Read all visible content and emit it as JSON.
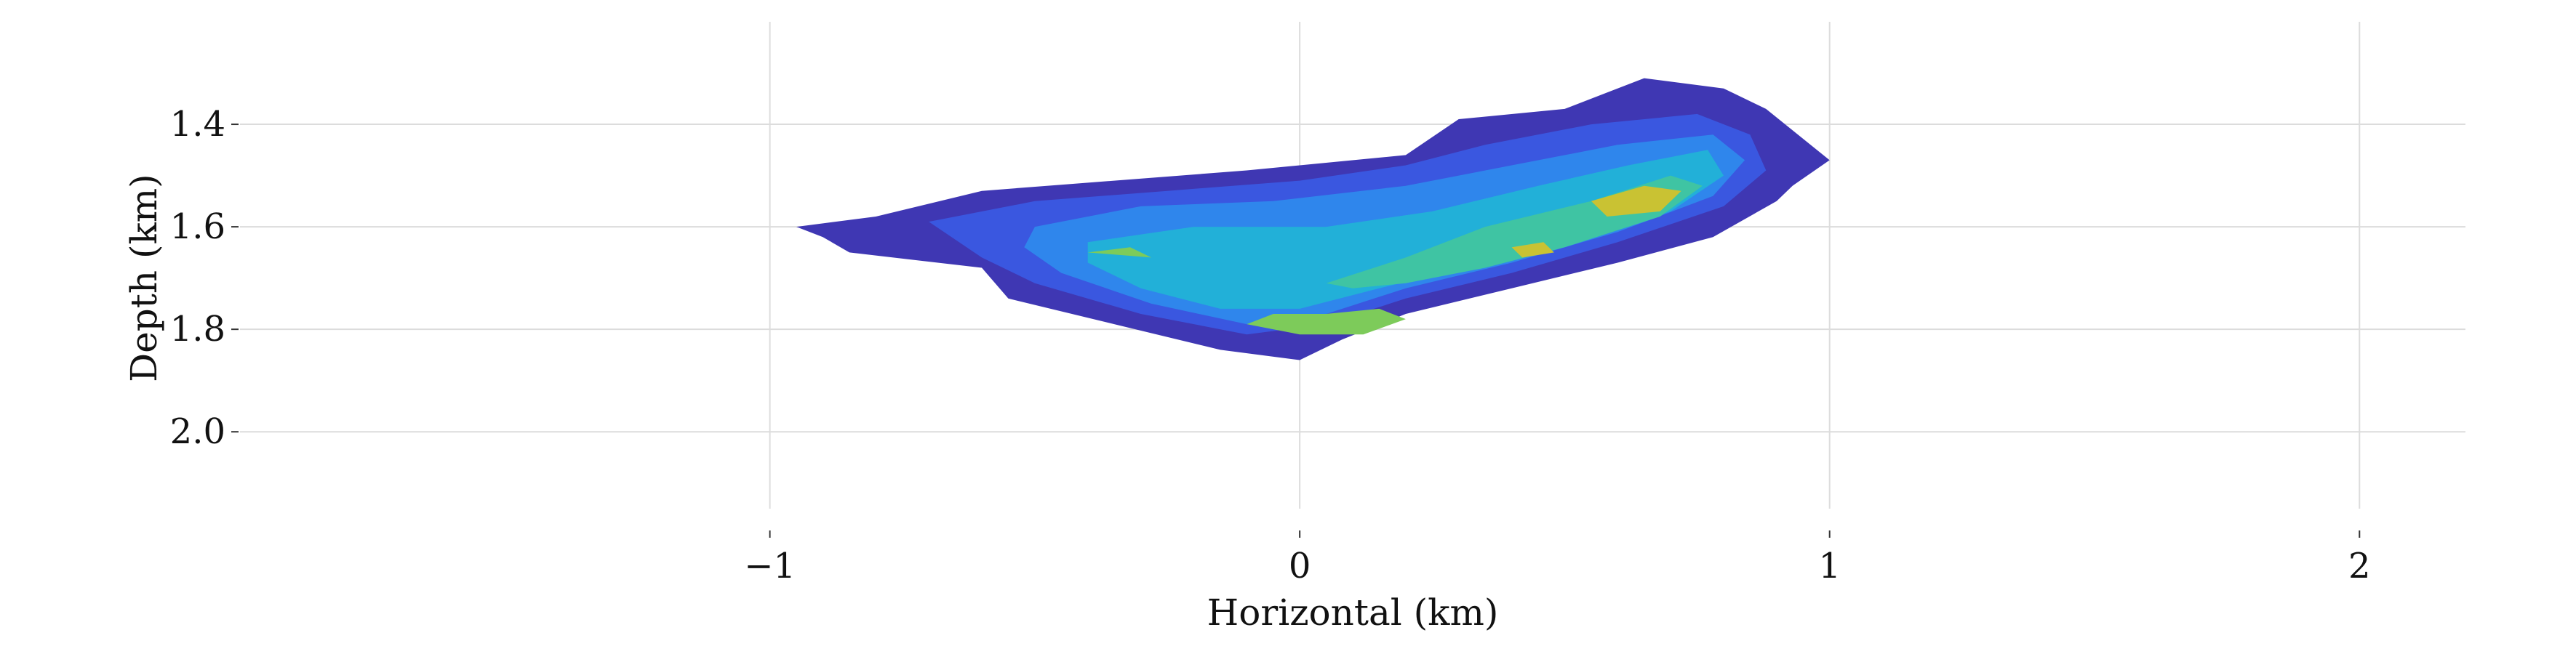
{
  "chart_data": {
    "type": "heatmap",
    "title": "",
    "xlabel": "Horizontal (km)",
    "ylabel": "Depth (km)",
    "xlim": [
      -2.0,
      2.2
    ],
    "ylim": [
      2.15,
      1.2
    ],
    "y_inverted": true,
    "grid": true,
    "legend": "none",
    "x_ticks": [
      {
        "value": -1,
        "label": "−1"
      },
      {
        "value": 0,
        "label": "0"
      },
      {
        "value": 1,
        "label": "1"
      },
      {
        "value": 2,
        "label": "2"
      }
    ],
    "y_ticks": [
      {
        "value": 1.4,
        "label": "1.4"
      },
      {
        "value": 1.6,
        "label": "1.6"
      },
      {
        "value": 1.8,
        "label": "1.8"
      },
      {
        "value": 2.0,
        "label": "2.0"
      }
    ],
    "colormap": [
      "#3f37b3",
      "#3a57e0",
      "#2f86ec",
      "#22b0d8",
      "#3fc4a3",
      "#7dcb5a",
      "#c9c233"
    ],
    "contours": [
      {
        "level": 1,
        "points": [
          [
            -0.95,
            1.6
          ],
          [
            -0.8,
            1.58
          ],
          [
            -0.6,
            1.53
          ],
          [
            -0.35,
            1.51
          ],
          [
            -0.1,
            1.49
          ],
          [
            0.2,
            1.46
          ],
          [
            0.3,
            1.39
          ],
          [
            0.5,
            1.37
          ],
          [
            0.65,
            1.31
          ],
          [
            0.8,
            1.33
          ],
          [
            0.88,
            1.37
          ],
          [
            1.0,
            1.47
          ],
          [
            0.93,
            1.52
          ],
          [
            0.9,
            1.55
          ],
          [
            0.78,
            1.62
          ],
          [
            0.6,
            1.67
          ],
          [
            0.4,
            1.72
          ],
          [
            0.2,
            1.77
          ],
          [
            0.08,
            1.82
          ],
          [
            0.0,
            1.86
          ],
          [
            -0.15,
            1.84
          ],
          [
            -0.35,
            1.79
          ],
          [
            -0.55,
            1.74
          ],
          [
            -0.6,
            1.68
          ],
          [
            -0.85,
            1.65
          ],
          [
            -0.9,
            1.62
          ]
        ]
      },
      {
        "level": 2,
        "points": [
          [
            -0.7,
            1.59
          ],
          [
            -0.5,
            1.55
          ],
          [
            -0.25,
            1.53
          ],
          [
            0.0,
            1.51
          ],
          [
            0.2,
            1.48
          ],
          [
            0.35,
            1.44
          ],
          [
            0.55,
            1.4
          ],
          [
            0.75,
            1.38
          ],
          [
            0.85,
            1.42
          ],
          [
            0.88,
            1.49
          ],
          [
            0.8,
            1.56
          ],
          [
            0.6,
            1.63
          ],
          [
            0.4,
            1.69
          ],
          [
            0.2,
            1.74
          ],
          [
            0.05,
            1.79
          ],
          [
            -0.1,
            1.81
          ],
          [
            -0.3,
            1.77
          ],
          [
            -0.5,
            1.71
          ],
          [
            -0.6,
            1.66
          ]
        ]
      },
      {
        "level": 3,
        "points": [
          [
            -0.5,
            1.6
          ],
          [
            -0.3,
            1.56
          ],
          [
            -0.05,
            1.55
          ],
          [
            0.2,
            1.52
          ],
          [
            0.4,
            1.48
          ],
          [
            0.6,
            1.44
          ],
          [
            0.78,
            1.42
          ],
          [
            0.84,
            1.47
          ],
          [
            0.78,
            1.54
          ],
          [
            0.6,
            1.61
          ],
          [
            0.4,
            1.67
          ],
          [
            0.2,
            1.72
          ],
          [
            0.05,
            1.77
          ],
          [
            -0.1,
            1.79
          ],
          [
            -0.28,
            1.75
          ],
          [
            -0.45,
            1.69
          ],
          [
            -0.52,
            1.64
          ]
        ]
      },
      {
        "level": 4,
        "points": [
          [
            -0.4,
            1.63
          ],
          [
            -0.2,
            1.6
          ],
          [
            0.05,
            1.6
          ],
          [
            0.25,
            1.57
          ],
          [
            0.45,
            1.52
          ],
          [
            0.62,
            1.48
          ],
          [
            0.77,
            1.45
          ],
          [
            0.8,
            1.5
          ],
          [
            0.7,
            1.57
          ],
          [
            0.55,
            1.62
          ],
          [
            0.35,
            1.67
          ],
          [
            0.15,
            1.72
          ],
          [
            0.0,
            1.76
          ],
          [
            -0.15,
            1.76
          ],
          [
            -0.3,
            1.72
          ],
          [
            -0.4,
            1.67
          ]
        ]
      },
      {
        "level": 5,
        "points": [
          [
            0.35,
            1.6
          ],
          [
            0.55,
            1.55
          ],
          [
            0.7,
            1.5
          ],
          [
            0.76,
            1.52
          ],
          [
            0.68,
            1.58
          ],
          [
            0.5,
            1.64
          ],
          [
            0.35,
            1.68
          ],
          [
            0.2,
            1.71
          ],
          [
            0.1,
            1.72
          ],
          [
            0.05,
            1.71
          ],
          [
            0.2,
            1.66
          ]
        ]
      },
      {
        "level": 6,
        "points": [
          [
            0.05,
            1.77
          ],
          [
            0.15,
            1.76
          ],
          [
            0.2,
            1.78
          ],
          [
            0.12,
            1.81
          ],
          [
            0.0,
            1.81
          ],
          [
            -0.1,
            1.79
          ],
          [
            -0.05,
            1.77
          ]
        ]
      },
      {
        "level": 6,
        "points": [
          [
            -0.4,
            1.65
          ],
          [
            -0.32,
            1.64
          ],
          [
            -0.28,
            1.66
          ],
          -0.36,
          1.67
        ]
      },
      {
        "level": 7,
        "points": [
          [
            0.55,
            1.55
          ],
          [
            0.65,
            1.52
          ],
          [
            0.72,
            1.53
          ],
          [
            0.68,
            1.57
          ],
          [
            0.58,
            1.58
          ]
        ]
      },
      {
        "level": 7,
        "points": [
          [
            0.4,
            1.64
          ],
          [
            0.46,
            1.63
          ],
          [
            0.48,
            1.65
          ],
          [
            0.42,
            1.66
          ]
        ]
      }
    ]
  }
}
